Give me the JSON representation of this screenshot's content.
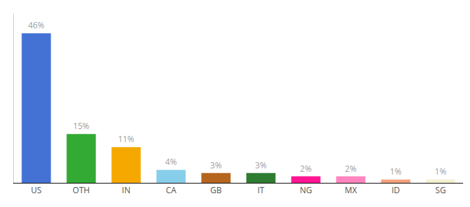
{
  "chart_data": {
    "type": "bar",
    "categories": [
      "US",
      "OTH",
      "IN",
      "CA",
      "GB",
      "IT",
      "NG",
      "MX",
      "ID",
      "SG"
    ],
    "values": [
      46,
      15,
      11,
      4,
      3,
      3,
      2,
      2,
      1,
      1
    ],
    "value_labels": [
      "46%",
      "15%",
      "11%",
      "4%",
      "3%",
      "3%",
      "2%",
      "2%",
      "1%",
      "1%"
    ],
    "colors": [
      "#4472d4",
      "#33aa33",
      "#f5a800",
      "#87ceeb",
      "#b5651d",
      "#2e7d32",
      "#ff1493",
      "#ff85c0",
      "#f4a07a",
      "#f5f0d0"
    ],
    "ylim": [
      0,
      52
    ],
    "yticks": [],
    "grid": false,
    "data_labels": true,
    "tick_labels": "x"
  }
}
